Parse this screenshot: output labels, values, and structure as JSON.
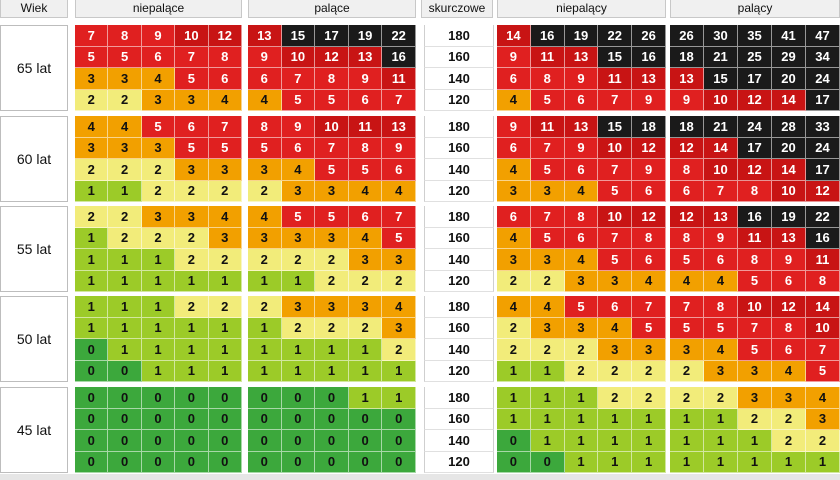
{
  "headers": {
    "age_col": "Wiek",
    "women_nonsmoking": "niepalące",
    "women_smoking": "palące",
    "systolic_col": "skurczowe",
    "men_nonsmoking": "niepalący",
    "men_smoking": "palący"
  },
  "colors": {
    "0": "#3ca83c",
    "1": "#9ccb28",
    "2": "#f2ec7a",
    "3_4": "#f2a000",
    "5_9": "#e02020",
    "10_14": "#c81414",
    "15_plus": "#1a1a1a"
  },
  "chart_data": {
    "type": "heatmap",
    "age_groups": [
      "65 lat",
      "60 lat",
      "55 lat",
      "50 lat",
      "45 lat"
    ],
    "systolic_levels": [
      "180",
      "160",
      "140",
      "120"
    ],
    "groups": [
      "niepalące",
      "palące",
      "niepalący",
      "palący"
    ],
    "values": [
      [
        [
          [
            7,
            8,
            9,
            10,
            12
          ],
          [
            5,
            5,
            6,
            7,
            8
          ],
          [
            3,
            3,
            4,
            5,
            6
          ],
          [
            2,
            2,
            3,
            3,
            4
          ]
        ],
        [
          [
            13,
            15,
            17,
            19,
            22
          ],
          [
            9,
            10,
            12,
            13,
            16
          ],
          [
            6,
            7,
            8,
            9,
            11
          ],
          [
            4,
            5,
            5,
            6,
            7
          ]
        ],
        [
          [
            14,
            16,
            19,
            22,
            26
          ],
          [
            9,
            11,
            13,
            15,
            16
          ],
          [
            6,
            8,
            9,
            11,
            13
          ],
          [
            4,
            5,
            6,
            7,
            9
          ]
        ],
        [
          [
            26,
            30,
            35,
            41,
            47
          ],
          [
            18,
            21,
            25,
            29,
            34
          ],
          [
            13,
            15,
            17,
            20,
            24
          ],
          [
            9,
            10,
            12,
            14,
            17
          ]
        ]
      ],
      [
        [
          [
            4,
            4,
            5,
            6,
            7
          ],
          [
            3,
            3,
            3,
            5,
            5
          ],
          [
            2,
            2,
            2,
            3,
            3
          ],
          [
            1,
            1,
            2,
            2,
            2
          ]
        ],
        [
          [
            8,
            9,
            10,
            11,
            13
          ],
          [
            5,
            6,
            7,
            8,
            9
          ],
          [
            3,
            4,
            5,
            5,
            6
          ],
          [
            2,
            3,
            3,
            4,
            4
          ]
        ],
        [
          [
            9,
            11,
            13,
            15,
            18
          ],
          [
            6,
            7,
            9,
            10,
            12
          ],
          [
            4,
            5,
            6,
            7,
            9
          ],
          [
            3,
            3,
            4,
            5,
            6
          ]
        ],
        [
          [
            18,
            21,
            24,
            28,
            33
          ],
          [
            12,
            14,
            17,
            20,
            24
          ],
          [
            8,
            10,
            12,
            14,
            17
          ],
          [
            6,
            7,
            8,
            10,
            12
          ]
        ]
      ],
      [
        [
          [
            2,
            2,
            3,
            3,
            4
          ],
          [
            1,
            2,
            2,
            2,
            3
          ],
          [
            1,
            1,
            1,
            2,
            2
          ],
          [
            1,
            1,
            1,
            1,
            1
          ]
        ],
        [
          [
            4,
            5,
            5,
            6,
            7
          ],
          [
            3,
            3,
            3,
            4,
            5
          ],
          [
            2,
            2,
            2,
            3,
            3
          ],
          [
            1,
            1,
            2,
            2,
            2
          ]
        ],
        [
          [
            6,
            7,
            8,
            10,
            12
          ],
          [
            4,
            5,
            6,
            7,
            8
          ],
          [
            3,
            3,
            4,
            5,
            6
          ],
          [
            2,
            2,
            3,
            3,
            4
          ]
        ],
        [
          [
            12,
            13,
            16,
            19,
            22
          ],
          [
            8,
            9,
            11,
            13,
            16
          ],
          [
            5,
            6,
            8,
            9,
            11
          ],
          [
            4,
            4,
            5,
            6,
            8
          ]
        ]
      ],
      [
        [
          [
            1,
            1,
            1,
            2,
            2
          ],
          [
            1,
            1,
            1,
            1,
            1
          ],
          [
            0,
            1,
            1,
            1,
            1
          ],
          [
            0,
            0,
            1,
            1,
            1
          ]
        ],
        [
          [
            2,
            3,
            3,
            3,
            4
          ],
          [
            1,
            2,
            2,
            2,
            3
          ],
          [
            1,
            1,
            1,
            1,
            2
          ],
          [
            1,
            1,
            1,
            1,
            1
          ]
        ],
        [
          [
            4,
            4,
            5,
            6,
            7
          ],
          [
            2,
            3,
            3,
            4,
            5
          ],
          [
            2,
            2,
            2,
            3,
            3
          ],
          [
            1,
            1,
            2,
            2,
            2
          ]
        ],
        [
          [
            7,
            8,
            10,
            12,
            14
          ],
          [
            5,
            5,
            7,
            8,
            10
          ],
          [
            3,
            4,
            5,
            6,
            7
          ],
          [
            2,
            3,
            3,
            4,
            5
          ]
        ]
      ],
      [
        [
          [
            0,
            0,
            0,
            0,
            0
          ],
          [
            0,
            0,
            0,
            0,
            0
          ],
          [
            0,
            0,
            0,
            0,
            0
          ],
          [
            0,
            0,
            0,
            0,
            0
          ]
        ],
        [
          [
            0,
            0,
            0,
            1,
            1
          ],
          [
            0,
            0,
            0,
            0,
            0
          ],
          [
            0,
            0,
            0,
            0,
            0
          ],
          [
            0,
            0,
            0,
            0,
            0
          ]
        ],
        [
          [
            1,
            1,
            1,
            2,
            2
          ],
          [
            1,
            1,
            1,
            1,
            1
          ],
          [
            0,
            1,
            1,
            1,
            1
          ],
          [
            0,
            0,
            1,
            1,
            1
          ]
        ],
        [
          [
            2,
            2,
            3,
            3,
            4
          ],
          [
            1,
            1,
            2,
            2,
            3
          ],
          [
            1,
            1,
            1,
            2,
            2
          ],
          [
            1,
            1,
            1,
            1,
            1
          ]
        ]
      ]
    ]
  }
}
